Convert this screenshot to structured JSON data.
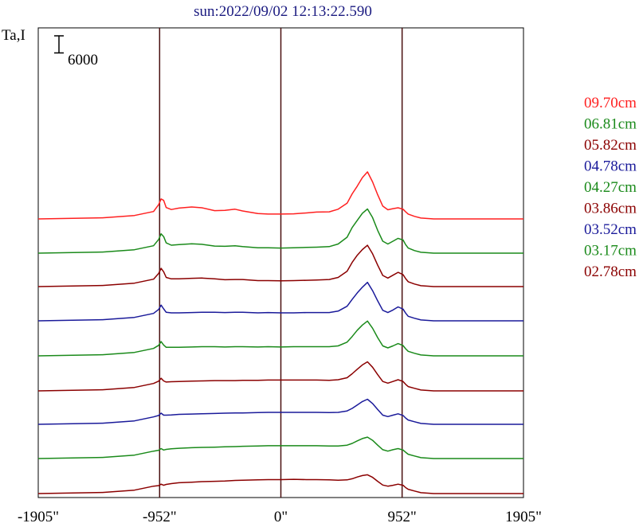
{
  "chart_data": {
    "type": "line",
    "title": "sun:2022/09/02 12:13:22.590",
    "ylabel": "Ta,I",
    "scale_bar_label": "6000",
    "scale_bar_value": 6000,
    "xlim": [
      -1905,
      1905
    ],
    "x_ticks": [
      {
        "value": -1905,
        "label": "-1905\""
      },
      {
        "value": -952,
        "label": "-952\""
      },
      {
        "value": 0,
        "label": "0\""
      },
      {
        "value": 952,
        "label": "952\""
      },
      {
        "value": 1905,
        "label": "1905\""
      }
    ],
    "vertical_lines": [
      -952,
      0,
      952
    ],
    "series": [
      {
        "name": "09.70cm",
        "color": "#ff2020",
        "baseline": 275,
        "x": [
          -1905,
          -1400,
          -1150,
          -1000,
          -960,
          -940,
          -920,
          -900,
          -860,
          -800,
          -700,
          -620,
          -520,
          -440,
          -360,
          -300,
          -180,
          -100,
          0,
          100,
          200,
          280,
          380,
          450,
          520,
          560,
          600,
          640,
          680,
          720,
          760,
          800,
          840,
          880,
          920,
          960,
          980,
          1000,
          1050,
          1100,
          1200,
          1400,
          1905
        ],
        "y": [
          0,
          400,
          1200,
          2600,
          5000,
          7000,
          6500,
          4000,
          3300,
          3800,
          4200,
          3900,
          2900,
          3000,
          3400,
          2800,
          1900,
          1700,
          1700,
          1800,
          2100,
          2400,
          2500,
          3400,
          5500,
          8800,
          11500,
          14500,
          16500,
          13000,
          8500,
          4500,
          3200,
          3600,
          3900,
          3400,
          2500,
          1700,
          900,
          300,
          0,
          0,
          0
        ]
      },
      {
        "name": "06.81cm",
        "color": "#1a8a1a",
        "baseline": 318,
        "x": [
          -1905,
          -1400,
          -1150,
          -1000,
          -960,
          -940,
          -920,
          -900,
          -860,
          -800,
          -700,
          -620,
          -520,
          -440,
          -360,
          -300,
          -180,
          -100,
          0,
          100,
          200,
          280,
          380,
          450,
          520,
          560,
          600,
          640,
          680,
          720,
          760,
          800,
          840,
          880,
          920,
          960,
          980,
          1000,
          1050,
          1100,
          1200,
          1400,
          1905
        ],
        "y": [
          0,
          400,
          1200,
          2600,
          4800,
          6800,
          5800,
          3600,
          2800,
          3000,
          3300,
          3100,
          2500,
          2400,
          2600,
          2300,
          1900,
          1900,
          1800,
          1900,
          2000,
          2100,
          2300,
          3200,
          5600,
          9000,
          11500,
          14000,
          15500,
          12500,
          8000,
          4200,
          3200,
          4200,
          5200,
          4600,
          3000,
          1800,
          900,
          300,
          0,
          0,
          0
        ]
      },
      {
        "name": "05.82cm",
        "color": "#8b0000",
        "baseline": 360,
        "x": [
          -1905,
          -1400,
          -1150,
          -1000,
          -960,
          -940,
          -920,
          -900,
          -860,
          -800,
          -700,
          -620,
          -520,
          -440,
          -360,
          -300,
          -180,
          -100,
          0,
          100,
          200,
          280,
          380,
          450,
          520,
          560,
          600,
          640,
          680,
          720,
          760,
          800,
          840,
          880,
          920,
          960,
          980,
          1000,
          1050,
          1100,
          1200,
          1400,
          1905
        ],
        "y": [
          0,
          400,
          1200,
          2600,
          4600,
          6400,
          5200,
          3200,
          2700,
          2700,
          2900,
          3000,
          2700,
          2400,
          2500,
          2500,
          2100,
          2100,
          2000,
          2100,
          2200,
          2300,
          2500,
          3200,
          5400,
          8500,
          11000,
          13000,
          14500,
          11500,
          7500,
          3900,
          3000,
          4000,
          5000,
          4200,
          2800,
          1700,
          900,
          300,
          0,
          0,
          0
        ]
      },
      {
        "name": "04.78cm",
        "color": "#1a1a9a",
        "baseline": 403,
        "x": [
          -1905,
          -1400,
          -1150,
          -1000,
          -960,
          -940,
          -920,
          -900,
          -860,
          -800,
          -700,
          -620,
          -520,
          -440,
          -360,
          -300,
          -180,
          -100,
          0,
          100,
          200,
          280,
          380,
          450,
          520,
          560,
          600,
          640,
          680,
          720,
          760,
          800,
          840,
          880,
          920,
          960,
          980,
          1000,
          1050,
          1100,
          1200,
          1400,
          1905
        ],
        "y": [
          0,
          400,
          1200,
          2600,
          4000,
          5500,
          4200,
          3000,
          2800,
          2800,
          2900,
          3000,
          3000,
          2900,
          3000,
          3000,
          2800,
          2900,
          2800,
          2800,
          2900,
          2900,
          2900,
          3400,
          5100,
          7500,
          9800,
          11800,
          13500,
          10600,
          7000,
          3700,
          2900,
          3800,
          4900,
          4100,
          2700,
          1600,
          900,
          300,
          0,
          0,
          0
        ]
      },
      {
        "name": "04.27cm",
        "color": "#1a8a1a",
        "baseline": 447,
        "x": [
          -1905,
          -1400,
          -1150,
          -1000,
          -960,
          -940,
          -920,
          -900,
          -860,
          -800,
          -700,
          -620,
          -520,
          -440,
          -360,
          -300,
          -180,
          -100,
          0,
          100,
          200,
          280,
          380,
          450,
          520,
          560,
          600,
          640,
          680,
          720,
          760,
          800,
          840,
          880,
          920,
          960,
          980,
          1000,
          1050,
          1100,
          1200,
          1400,
          1905
        ],
        "y": [
          0,
          400,
          1200,
          2600,
          3700,
          5000,
          3800,
          3000,
          3000,
          3000,
          3100,
          3200,
          3200,
          3100,
          3200,
          3200,
          3100,
          3200,
          3100,
          3200,
          3200,
          3200,
          3200,
          3500,
          4800,
          6800,
          9000,
          10800,
          12200,
          9700,
          6400,
          3500,
          2800,
          3500,
          4300,
          3600,
          2500,
          1600,
          900,
          300,
          0,
          0,
          0
        ]
      },
      {
        "name": "03.86cm",
        "color": "#8b0000",
        "baseline": 491,
        "x": [
          -1905,
          -1400,
          -1150,
          -1000,
          -960,
          -940,
          -920,
          -900,
          -860,
          -800,
          -700,
          -620,
          -520,
          -440,
          -360,
          -300,
          -180,
          -100,
          0,
          100,
          200,
          280,
          380,
          450,
          520,
          560,
          600,
          640,
          680,
          720,
          760,
          800,
          840,
          880,
          920,
          960,
          980,
          1000,
          1050,
          1100,
          1200,
          1400,
          1905
        ],
        "y": [
          0,
          400,
          1200,
          2600,
          3400,
          4400,
          3500,
          3100,
          3200,
          3300,
          3400,
          3500,
          3600,
          3600,
          3600,
          3700,
          3700,
          3800,
          3800,
          3800,
          3800,
          3800,
          3700,
          3900,
          4600,
          6000,
          7600,
          9100,
          10200,
          8300,
          5700,
          3300,
          2700,
          3300,
          3900,
          3300,
          2300,
          1500,
          900,
          300,
          0,
          0,
          0
        ]
      },
      {
        "name": "03.52cm",
        "color": "#1a1a9a",
        "baseline": 533,
        "x": [
          -1905,
          -1400,
          -1150,
          -1000,
          -960,
          -940,
          -920,
          -900,
          -860,
          -800,
          -700,
          -620,
          -520,
          -440,
          -360,
          -300,
          -180,
          -100,
          0,
          100,
          200,
          280,
          380,
          450,
          520,
          560,
          600,
          640,
          680,
          720,
          760,
          800,
          840,
          880,
          920,
          960,
          980,
          1000,
          1050,
          1100,
          1200,
          1400,
          1905
        ],
        "y": [
          0,
          400,
          1200,
          2600,
          3100,
          3900,
          3200,
          3200,
          3300,
          3500,
          3600,
          3700,
          3800,
          3900,
          4000,
          4000,
          4100,
          4200,
          4200,
          4200,
          4200,
          4200,
          4100,
          4200,
          4700,
          5600,
          6800,
          8000,
          8800,
          7300,
          5200,
          3200,
          2700,
          3200,
          3700,
          3100,
          2200,
          1500,
          900,
          300,
          0,
          0,
          0
        ]
      },
      {
        "name": "03.17cm",
        "color": "#1a8a1a",
        "baseline": 576,
        "x": [
          -1905,
          -1400,
          -1150,
          -1000,
          -960,
          -940,
          -920,
          -900,
          -860,
          -800,
          -700,
          -620,
          -520,
          -440,
          -360,
          -300,
          -180,
          -100,
          0,
          100,
          200,
          280,
          380,
          450,
          520,
          560,
          600,
          640,
          680,
          720,
          760,
          800,
          840,
          880,
          920,
          960,
          980,
          1000,
          1050,
          1100,
          1200,
          1400,
          1905
        ],
        "y": [
          0,
          400,
          1200,
          2600,
          2900,
          3500,
          3000,
          3200,
          3400,
          3600,
          3800,
          3900,
          4000,
          4100,
          4200,
          4300,
          4400,
          4500,
          4500,
          4500,
          4500,
          4500,
          4400,
          4400,
          4700,
          5300,
          6200,
          7000,
          7500,
          6400,
          4700,
          3100,
          2600,
          3100,
          3500,
          3000,
          2200,
          1500,
          900,
          300,
          0,
          0,
          0
        ]
      },
      {
        "name": "02.78cm",
        "color": "#8b0000",
        "baseline": 620,
        "x": [
          -1905,
          -1400,
          -1150,
          -1000,
          -960,
          -940,
          -920,
          -900,
          -860,
          -800,
          -700,
          -620,
          -520,
          -440,
          -360,
          -300,
          -180,
          -100,
          0,
          100,
          200,
          280,
          380,
          450,
          520,
          560,
          600,
          640,
          680,
          720,
          760,
          800,
          840,
          880,
          920,
          960,
          980,
          1000,
          1050,
          1100,
          1200,
          1400,
          1905
        ],
        "y": [
          0,
          400,
          1200,
          2600,
          2800,
          3300,
          2900,
          3200,
          3500,
          3800,
          4000,
          4200,
          4300,
          4400,
          4600,
          4700,
          4800,
          4900,
          4900,
          5000,
          4900,
          4900,
          4800,
          4700,
          4800,
          5200,
          5800,
          6300,
          6600,
          5700,
          4300,
          3000,
          2600,
          2900,
          3300,
          2900,
          2100,
          1500,
          900,
          300,
          0,
          0,
          0
        ]
      }
    ]
  }
}
